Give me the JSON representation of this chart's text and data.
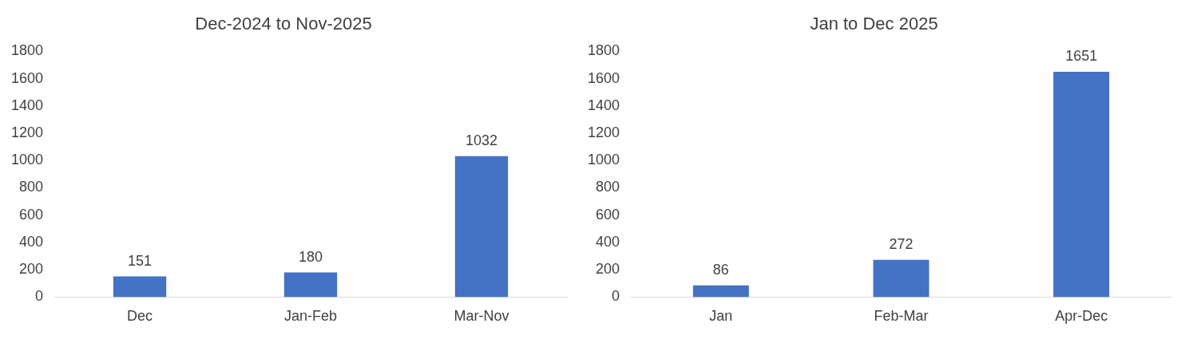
{
  "chart_data": [
    {
      "type": "bar",
      "title": "Dec-2024 to Nov-2025",
      "categories": [
        "Dec",
        "Jan-Feb",
        "Mar-Nov"
      ],
      "values": [
        151,
        180,
        1032
      ],
      "color": "#4472c4",
      "ylim": [
        0,
        1800
      ],
      "yticks": [
        0,
        200,
        400,
        600,
        800,
        1000,
        1200,
        1400,
        1600,
        1800
      ],
      "grid": false,
      "data_labels": true,
      "legend": false
    },
    {
      "type": "bar",
      "title": "Jan to Dec 2025",
      "categories": [
        "Jan",
        "Feb-Mar",
        "Apr-Dec"
      ],
      "values": [
        86,
        272,
        1651
      ],
      "color": "#4472c4",
      "ylim": [
        0,
        1800
      ],
      "yticks": [
        0,
        200,
        400,
        600,
        800,
        1000,
        1200,
        1400,
        1600,
        1800
      ],
      "grid": false,
      "data_labels": true,
      "legend": false
    }
  ]
}
